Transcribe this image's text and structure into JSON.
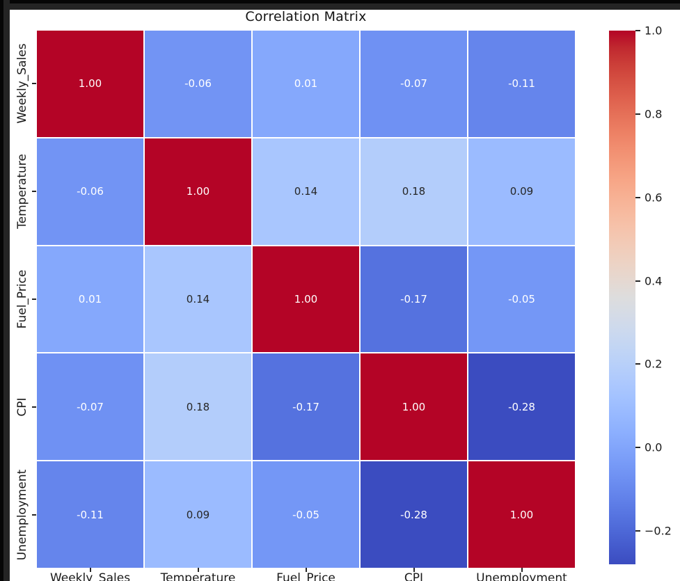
{
  "title": "Correlation Matrix",
  "chart_data": {
    "type": "heatmap",
    "title": "Correlation Matrix",
    "categories": [
      "Weekly_Sales",
      "Temperature",
      "Fuel_Price",
      "CPI",
      "Unemployment"
    ],
    "matrix": [
      [
        1.0,
        -0.06,
        0.01,
        -0.07,
        -0.11
      ],
      [
        -0.06,
        1.0,
        0.14,
        0.18,
        0.09
      ],
      [
        0.01,
        0.14,
        1.0,
        -0.17,
        -0.05
      ],
      [
        -0.07,
        0.18,
        -0.17,
        1.0,
        -0.28
      ],
      [
        -0.11,
        0.09,
        -0.05,
        -0.28,
        1.0
      ]
    ],
    "colormap": "coolwarm",
    "vmin": -0.28,
    "vmax": 1.0,
    "annotation_decimals": 2,
    "grid_line_color": "#ffffff",
    "annot_color_dark": "#262626",
    "annot_color_light": "#ffffff",
    "colorbar": {
      "position": "right",
      "tick_values": [
        1.0,
        0.8,
        0.6,
        0.4,
        0.2,
        0.0,
        -0.2
      ],
      "tick_labels": [
        "1.0",
        "0.8",
        "0.6",
        "0.4",
        "0.2",
        "0.0",
        "−0.2"
      ]
    }
  },
  "colors": {
    "figure_background": "#ffffff",
    "frame_outer": "#060606",
    "frame_inner": "#242424",
    "title_text": "#141414",
    "tick_text": "#1a1a1a",
    "cmap_min": "#3b4cc0",
    "cmap_mid": "#dddddd",
    "cmap_max": "#b40426"
  }
}
